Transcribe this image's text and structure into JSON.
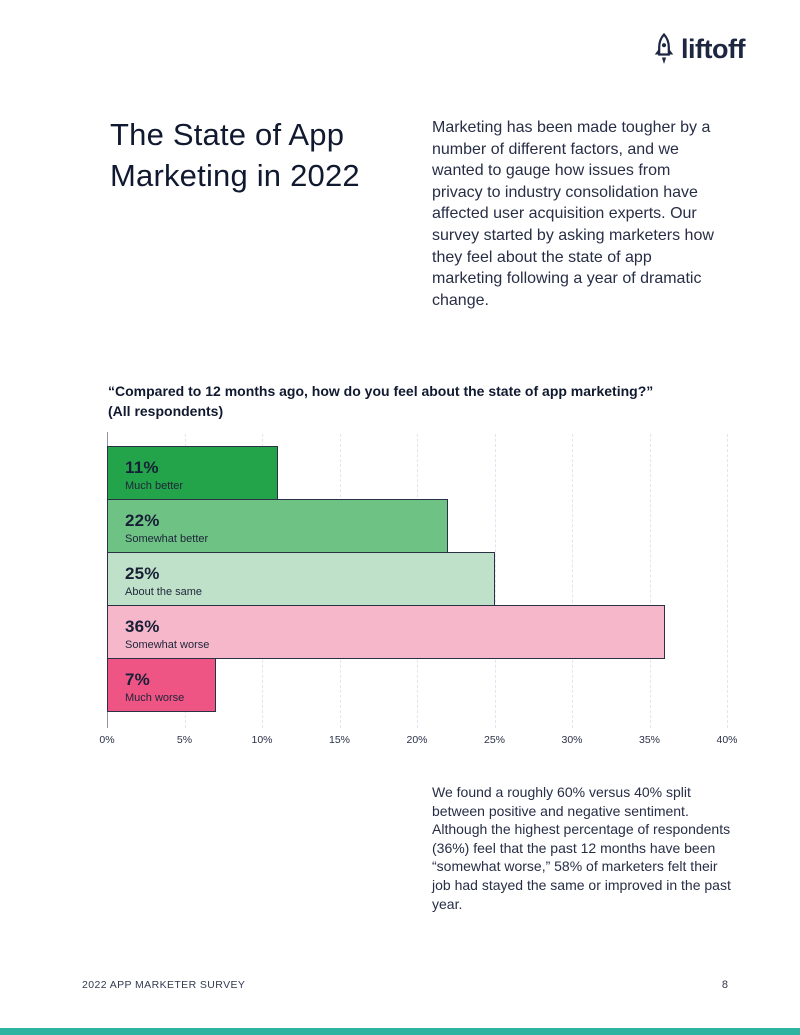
{
  "brand": {
    "logo_text": "liftoff"
  },
  "hero": {
    "title": "The State of App Marketing in 2022",
    "intro": "Marketing has been made tougher by a number of different factors, and we wanted to gauge how issues from privacy to industry consolidation have affected user acquisition experts. Our survey started by asking marketers how they feel about the state of app marketing following a year of dramatic change."
  },
  "chart_data": {
    "type": "bar",
    "orientation": "horizontal",
    "title": "“Compared to 12 months ago, how do you feel about the state of app marketing?”",
    "subtitle": "(All respondents)",
    "categories": [
      "Much better",
      "Somewhat better",
      "About the same",
      "Somewhat worse",
      "Much worse"
    ],
    "values": [
      11,
      22,
      25,
      36,
      7
    ],
    "value_labels": [
      "11%",
      "22%",
      "25%",
      "36%",
      "7%"
    ],
    "bar_colors": [
      "#23a44a",
      "#6ec284",
      "#c0e1c9",
      "#f6b7cb",
      "#ee5585"
    ],
    "xlim": [
      0,
      40
    ],
    "x_tick_step": 5,
    "x_ticks": [
      "0%",
      "5%",
      "10%",
      "15%",
      "20%",
      "25%",
      "30%",
      "35%",
      "40%"
    ],
    "grid": "vertical-dashed",
    "legend": "none"
  },
  "analysis": {
    "text": "We found a roughly 60% versus 40% split between positive and negative sentiment. Although the highest percentage of respondents (36%) feel that the past 12 months have been “somewhat worse,” 58% of marketers felt their job had stayed the same or improved in the past year."
  },
  "footer": {
    "left": "2022 APP MARKETER SURVEY",
    "page_number": "8"
  },
  "colors": {
    "brand_navy": "#1e2742",
    "teal_strip": "#2db4a1",
    "bar_border": "#2a3145",
    "gridline": "#e2e5f0"
  }
}
